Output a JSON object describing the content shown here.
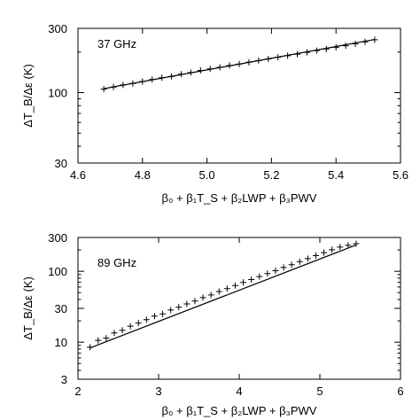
{
  "chart_data": [
    {
      "type": "scatter",
      "annotation": "37 GHz",
      "xlabel": "β₀ + β₁T_S + β₂LWP + β₃PWV",
      "ylabel": "ΔT_B/Δε (K)",
      "xlim": [
        4.6,
        5.6
      ],
      "ylim": [
        30,
        300
      ],
      "yscale": "log",
      "xticks": [
        4.6,
        4.8,
        5.0,
        5.2,
        5.4,
        5.6
      ],
      "xtick_labels": [
        "4.6",
        "4.8",
        "5.0",
        "5.2",
        "5.4",
        "5.6"
      ],
      "yticks": [
        30,
        100,
        300
      ],
      "ytick_labels": [
        "30",
        "100",
        "300"
      ],
      "fit_line": [
        [
          4.68,
          107
        ],
        [
          5.52,
          248
        ]
      ],
      "x": [
        4.68,
        4.71,
        4.74,
        4.77,
        4.8,
        4.83,
        4.86,
        4.89,
        4.92,
        4.95,
        4.98,
        5.01,
        5.04,
        5.07,
        5.1,
        5.13,
        5.16,
        5.19,
        5.22,
        5.25,
        5.28,
        5.31,
        5.34,
        5.37,
        5.4,
        5.43,
        5.46,
        5.49,
        5.52
      ],
      "y": [
        106,
        110,
        114,
        117,
        121,
        125,
        129,
        132,
        137,
        141,
        146,
        150,
        154,
        159,
        163,
        168,
        173,
        178,
        183,
        188,
        193,
        199,
        205,
        211,
        217,
        223,
        230,
        238,
        247
      ]
    },
    {
      "type": "scatter",
      "annotation": "89 GHz",
      "xlabel": "β₀ + β₁T_S + β₂LWP + β₃PWV",
      "ylabel": "ΔT_B/Δε (K)",
      "xlim": [
        2,
        6
      ],
      "ylim": [
        3,
        300
      ],
      "yscale": "log",
      "xticks": [
        2,
        3,
        4,
        5,
        6
      ],
      "xtick_labels": [
        "2",
        "3",
        "4",
        "5",
        "6"
      ],
      "yticks": [
        3,
        10,
        30,
        100,
        300
      ],
      "ytick_labels": [
        "3",
        "10",
        "30",
        "100",
        "300"
      ],
      "fit_line": [
        [
          2.15,
          8.3
        ],
        [
          5.45,
          235
        ]
      ],
      "x": [
        2.15,
        2.25,
        2.35,
        2.45,
        2.55,
        2.65,
        2.75,
        2.85,
        2.95,
        3.05,
        3.15,
        3.25,
        3.35,
        3.45,
        3.55,
        3.65,
        3.75,
        3.85,
        3.95,
        4.05,
        4.15,
        4.25,
        4.35,
        4.45,
        4.55,
        4.65,
        4.75,
        4.85,
        4.95,
        5.05,
        5.15,
        5.25,
        5.35,
        5.45
      ],
      "y": [
        8.5,
        10.6,
        11.4,
        13.5,
        14.7,
        16.8,
        18.6,
        20.8,
        23.3,
        25.1,
        28.4,
        31.2,
        34.6,
        38.0,
        42.5,
        46.3,
        51.8,
        56.9,
        63.0,
        69.6,
        76.4,
        84.3,
        93.0,
        102,
        113,
        124,
        137,
        151,
        166,
        183,
        201,
        219,
        232,
        245
      ]
    }
  ]
}
